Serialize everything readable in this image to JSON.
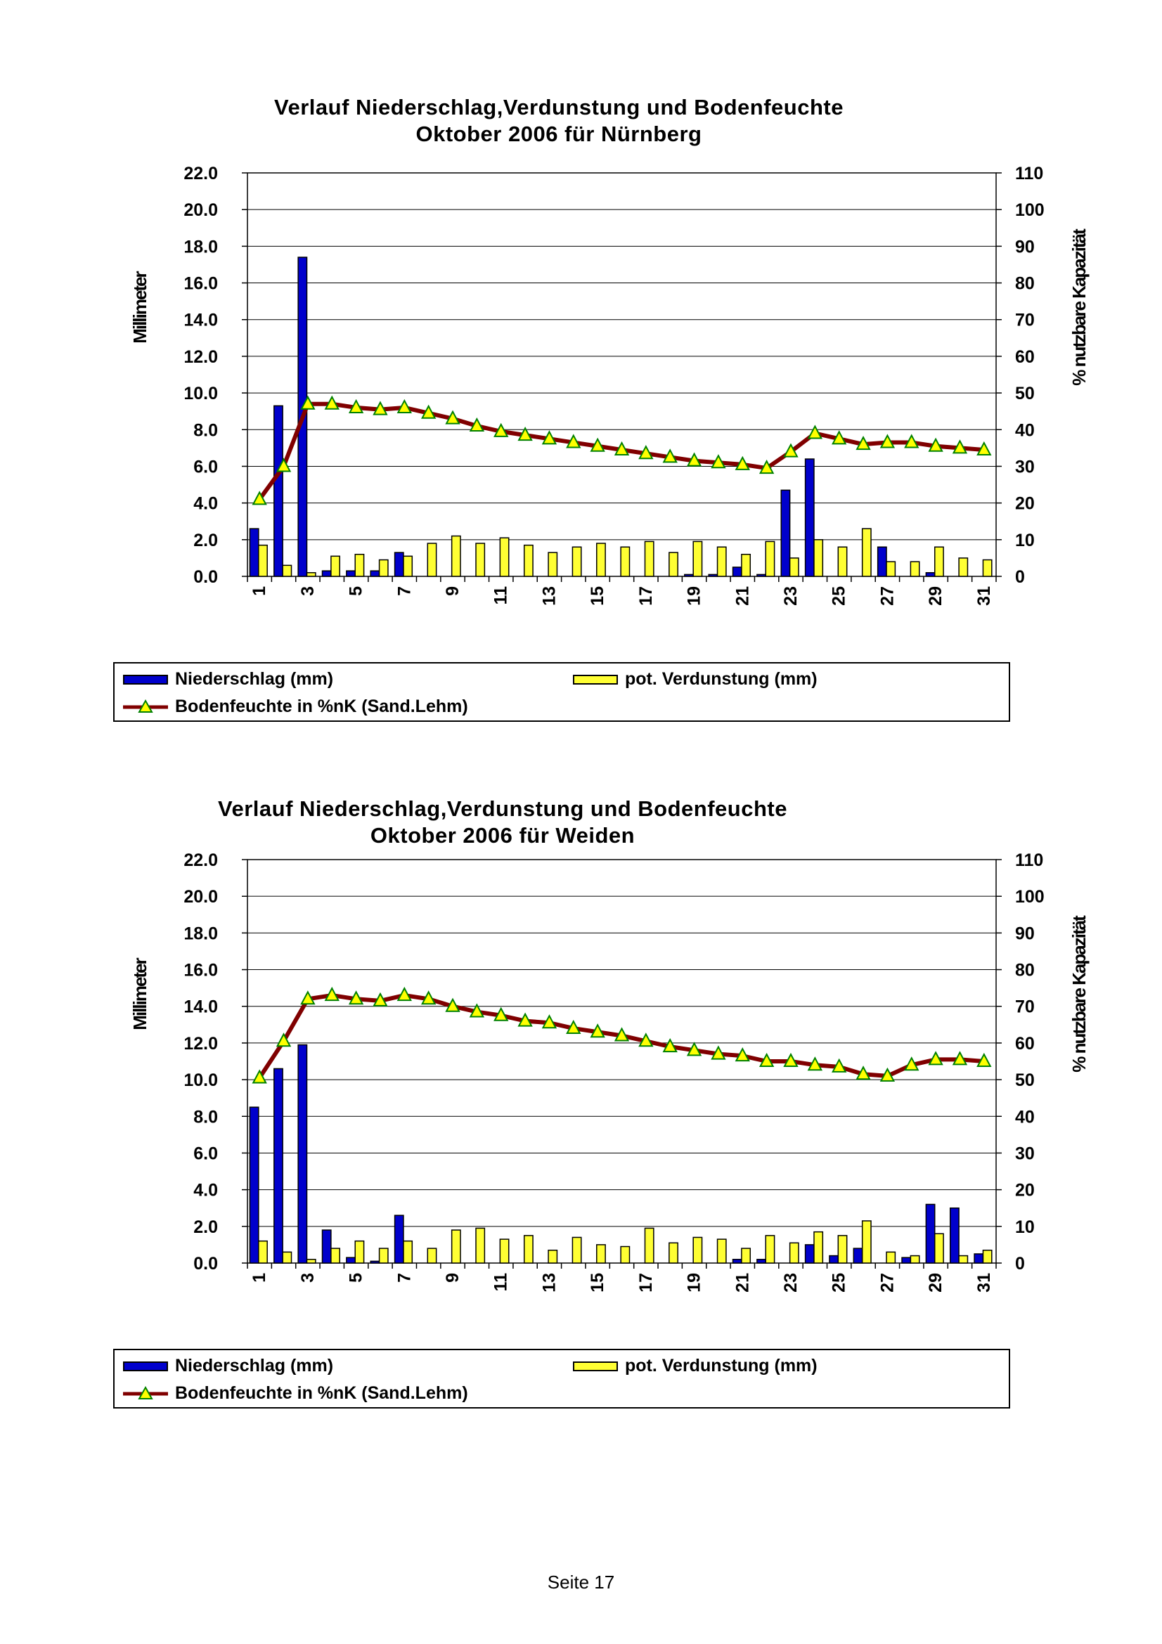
{
  "page": {
    "footer": "Seite 17"
  },
  "legend": {
    "precip": "Niederschlag (mm)",
    "evap": "pot. Verdunstung (mm)",
    "soil": "Bodenfeuchte in %nK (Sand.Lehm)"
  },
  "colors": {
    "precip": "#0000cc",
    "evap": "#ffff33",
    "soil_line": "#800000",
    "marker_fill": "#ffff00",
    "marker_edge": "#008000"
  },
  "chart_data": [
    {
      "type": "bar",
      "title": "Verlauf Niederschlag,Verdunstung und Bodenfeuchte",
      "subtitle": "Oktober 2006 für Nürnberg",
      "ylabel": "Millimeter",
      "y2label": "% nutzbare Kapazität",
      "ylim": [
        0,
        22
      ],
      "y2lim": [
        0,
        110
      ],
      "y_ticks": [
        "0.0",
        "2.0",
        "4.0",
        "6.0",
        "8.0",
        "10.0",
        "12.0",
        "14.0",
        "16.0",
        "18.0",
        "20.0",
        "22.0"
      ],
      "y2_ticks": [
        "0",
        "10",
        "20",
        "30",
        "40",
        "50",
        "60",
        "70",
        "80",
        "90",
        "100",
        "110"
      ],
      "x_tick_labels": [
        "1",
        "3",
        "5",
        "7",
        "9",
        "11",
        "13",
        "15",
        "17",
        "19",
        "21",
        "23",
        "25",
        "27",
        "29",
        "31"
      ],
      "x": [
        1,
        2,
        3,
        4,
        5,
        6,
        7,
        8,
        9,
        10,
        11,
        12,
        13,
        14,
        15,
        16,
        17,
        18,
        19,
        20,
        21,
        22,
        23,
        24,
        25,
        26,
        27,
        28,
        29,
        30,
        31
      ],
      "grid": true,
      "legend_position": "bottom",
      "series": [
        {
          "name": "Niederschlag (mm)",
          "type": "bar",
          "axis": "left",
          "values": [
            2.6,
            9.3,
            17.4,
            0.3,
            0.3,
            0.3,
            1.3,
            0,
            0,
            0,
            0,
            0,
            0,
            0,
            0,
            0,
            0,
            0,
            0.1,
            0.1,
            0.5,
            0.1,
            4.7,
            6.4,
            0,
            0,
            1.6,
            0,
            0.2,
            0,
            0
          ]
        },
        {
          "name": "pot. Verdunstung (mm)",
          "type": "bar",
          "axis": "left",
          "values": [
            1.7,
            0.6,
            0.2,
            1.1,
            1.2,
            0.9,
            1.1,
            1.8,
            2.2,
            1.8,
            2.1,
            1.7,
            1.3,
            1.6,
            1.8,
            1.6,
            1.9,
            1.3,
            1.9,
            1.6,
            1.2,
            1.9,
            1.0,
            2.0,
            1.6,
            2.6,
            0.8,
            0.8,
            1.6,
            1.0,
            0.9
          ]
        },
        {
          "name": "Bodenfeuchte in %nK (Sand.Lehm)",
          "type": "line",
          "axis": "right",
          "values": [
            21,
            30,
            47,
            47,
            46,
            45.5,
            46,
            44.5,
            43,
            41,
            39.5,
            38.5,
            37.5,
            36.5,
            35.5,
            34.5,
            33.5,
            32.5,
            31.5,
            31,
            30.5,
            29.5,
            34,
            39,
            37.5,
            36,
            36.5,
            36.5,
            35.5,
            35,
            34.5
          ]
        }
      ]
    },
    {
      "type": "bar",
      "title": "Verlauf Niederschlag,Verdunstung und Bodenfeuchte",
      "subtitle": "Oktober 2006 für Weiden",
      "ylabel": "Millimeter",
      "y2label": "% nutzbare Kapazität",
      "ylim": [
        0,
        22
      ],
      "y2lim": [
        0,
        110
      ],
      "y_ticks": [
        "0.0",
        "2.0",
        "4.0",
        "6.0",
        "8.0",
        "10.0",
        "12.0",
        "14.0",
        "16.0",
        "18.0",
        "20.0",
        "22.0"
      ],
      "y2_ticks": [
        "0",
        "10",
        "20",
        "30",
        "40",
        "50",
        "60",
        "70",
        "80",
        "90",
        "100",
        "110"
      ],
      "x_tick_labels": [
        "1",
        "3",
        "5",
        "7",
        "9",
        "11",
        "13",
        "15",
        "17",
        "19",
        "21",
        "23",
        "25",
        "27",
        "29",
        "31"
      ],
      "x": [
        1,
        2,
        3,
        4,
        5,
        6,
        7,
        8,
        9,
        10,
        11,
        12,
        13,
        14,
        15,
        16,
        17,
        18,
        19,
        20,
        21,
        22,
        23,
        24,
        25,
        26,
        27,
        28,
        29,
        30,
        31
      ],
      "grid": true,
      "legend_position": "bottom",
      "series": [
        {
          "name": "Niederschlag (mm)",
          "type": "bar",
          "axis": "left",
          "values": [
            8.5,
            10.6,
            11.9,
            1.8,
            0.3,
            0.1,
            2.6,
            0,
            0,
            0,
            0,
            0,
            0,
            0,
            0,
            0,
            0,
            0,
            0,
            0,
            0.2,
            0.2,
            0,
            1.0,
            0.4,
            0.8,
            0,
            0.3,
            3.2,
            3.0,
            0.5
          ]
        },
        {
          "name": "pot. Verdunstung (mm)",
          "type": "bar",
          "axis": "left",
          "values": [
            1.2,
            0.6,
            0.2,
            0.8,
            1.2,
            0.8,
            1.2,
            0.8,
            1.8,
            1.9,
            1.3,
            1.5,
            0.7,
            1.4,
            1.0,
            0.9,
            1.9,
            1.1,
            1.4,
            1.3,
            0.8,
            1.5,
            1.1,
            1.7,
            1.5,
            2.3,
            0.6,
            0.4,
            1.6,
            0.4,
            0.7
          ]
        },
        {
          "name": "Bodenfeuchte in %nK (Sand.Lehm)",
          "type": "line",
          "axis": "right",
          "values": [
            50.5,
            60.5,
            72,
            73,
            72,
            71.5,
            73,
            72,
            70,
            68.5,
            67.5,
            66,
            65.5,
            64,
            63,
            62,
            60.5,
            59,
            58,
            57,
            56.5,
            55,
            55,
            54,
            53.5,
            51.5,
            51,
            54,
            55.5,
            55.5,
            55
          ]
        }
      ]
    }
  ]
}
